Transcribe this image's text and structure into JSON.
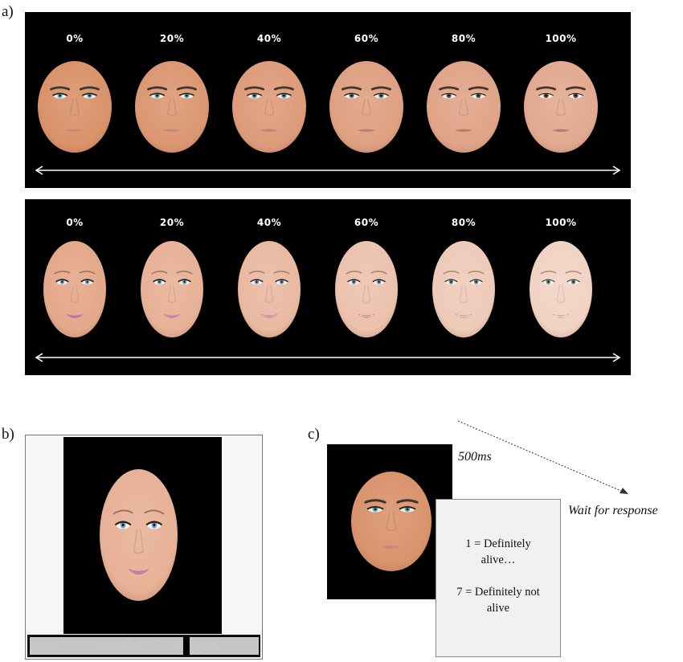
{
  "figure": {
    "panel_a_label": "a)",
    "panel_b_label": "b)",
    "panel_c_label": "c)",
    "morph_percentages": [
      "0%",
      "20%",
      "40%",
      "60%",
      "80%",
      "100%"
    ],
    "morph_levels": [
      0,
      0.2,
      0.4,
      0.6,
      0.8,
      1.0
    ],
    "male_row_caption_percent": [
      "0%",
      "20%",
      "40%",
      "60%",
      "80%",
      "100%"
    ],
    "female_row_caption_percent": [
      "0%",
      "20%",
      "40%",
      "60%",
      "80%",
      "100%"
    ]
  },
  "trial": {
    "duration": "500ms",
    "wait": "Wait for response",
    "scale_low": "1 = Definitely alive…",
    "scale_high": "7 = Definitely not alive"
  },
  "colors": {
    "background": "#000000",
    "doll_skin_male": "#d9926a",
    "human_skin_male": "#e2a990",
    "doll_skin_female": "#e4a88a",
    "human_skin_female": "#f1d3c4"
  }
}
